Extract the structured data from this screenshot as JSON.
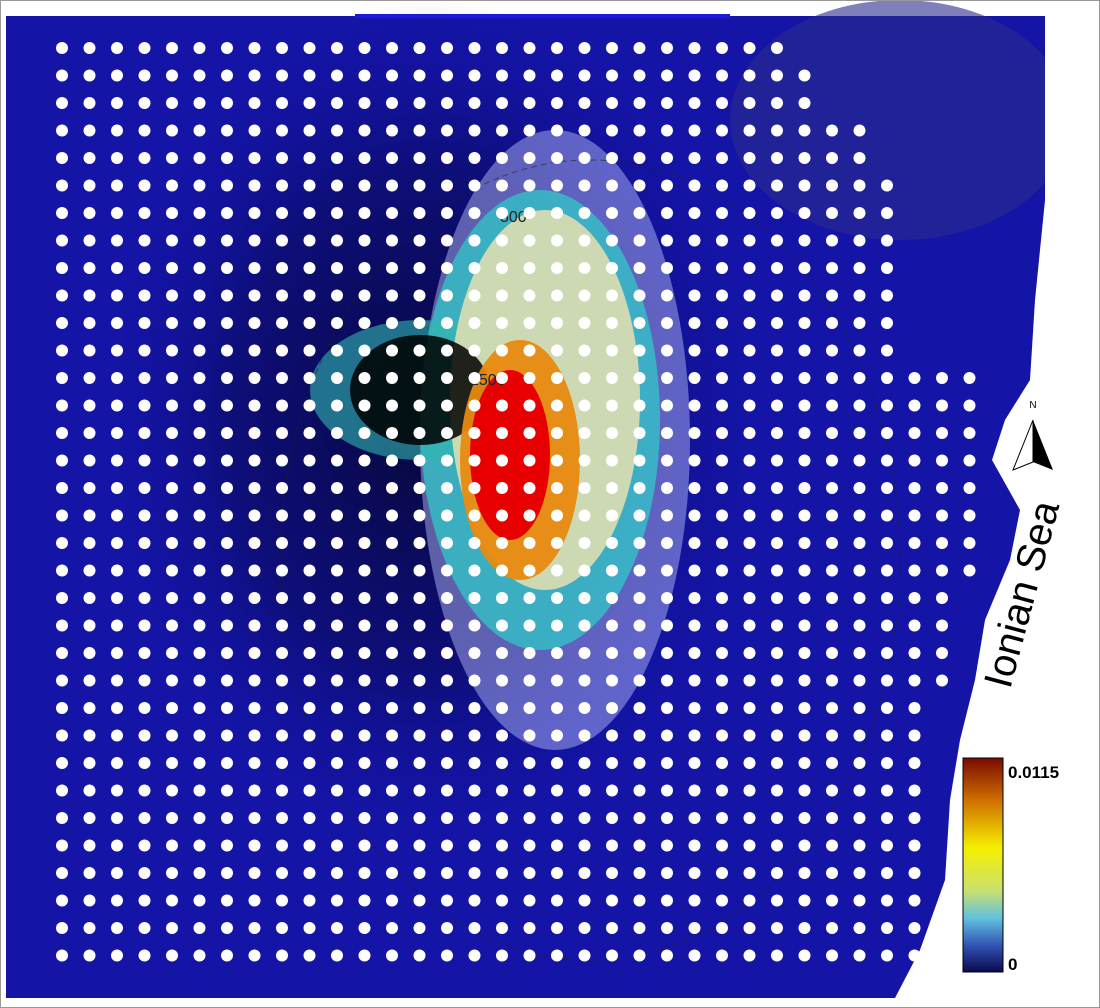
{
  "map": {
    "sea_label": "Ionian Sea",
    "north_label": "N",
    "colorbar": {
      "max_label": "0.0115",
      "min_label": "0"
    },
    "contour_labels": [
      "500",
      "1500"
    ]
  }
}
